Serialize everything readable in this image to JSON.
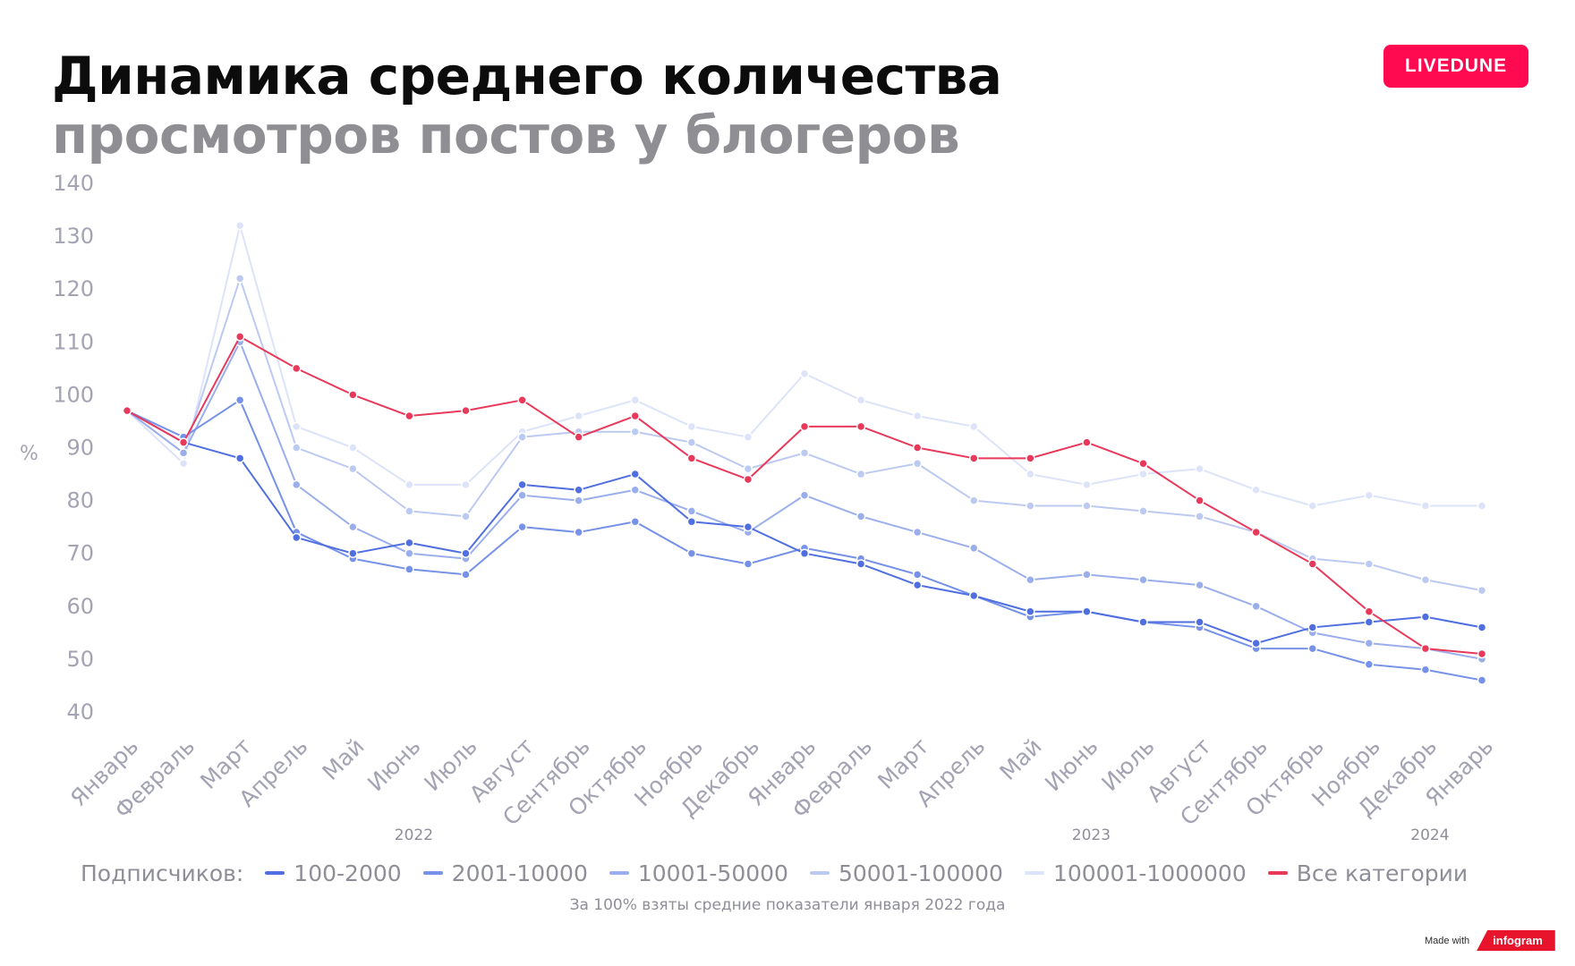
{
  "header": {
    "title_line1": "Динамика среднего количества",
    "title_line2": "просмотров постов у блогеров",
    "logo_text": "LIVEDUNE"
  },
  "chart_data": {
    "type": "line",
    "title": "Динамика среднего количества просмотров постов у блогеров",
    "ylabel": "%",
    "xlabel": "",
    "ylim": [
      40,
      140
    ],
    "yticks": [
      40,
      50,
      60,
      70,
      80,
      90,
      100,
      110,
      120,
      130,
      140
    ],
    "grid": false,
    "legend_position": "bottom",
    "legend_title": "Подписчиков:",
    "categories": [
      "Январь",
      "Февраль",
      "Март",
      "Апрель",
      "Май",
      "Июнь",
      "Июль",
      "Август",
      "Сентябрь",
      "Октябрь",
      "Ноябрь",
      "Декабрь",
      "Январь",
      "Февраль",
      "Март",
      "Апрель",
      "Май",
      "Июнь",
      "Июль",
      "Август",
      "Сентябрь",
      "Октябрь",
      "Ноябрь",
      "Декабрь",
      "Январь"
    ],
    "year_labels": [
      {
        "label": "2022",
        "category_index": 5
      },
      {
        "label": "2023",
        "category_index": 17
      },
      {
        "label": "2024",
        "category_index": 23
      }
    ],
    "series": [
      {
        "name": "100001-1000000",
        "color": "#dde3f8",
        "values": [
          97,
          87,
          132,
          94,
          90,
          83,
          83,
          93,
          96,
          99,
          94,
          92,
          104,
          99,
          96,
          94,
          85,
          83,
          85,
          86,
          82,
          79,
          81,
          79,
          79
        ]
      },
      {
        "name": "50001-100000",
        "color": "#bccaf1",
        "values": [
          97,
          89,
          122,
          90,
          86,
          78,
          77,
          92,
          93,
          93,
          91,
          86,
          89,
          85,
          87,
          80,
          79,
          79,
          78,
          77,
          74,
          69,
          68,
          65,
          63
        ]
      },
      {
        "name": "10001-50000",
        "color": "#9aaeec",
        "values": [
          97,
          89,
          110,
          83,
          75,
          70,
          69,
          81,
          80,
          82,
          78,
          74,
          81,
          77,
          74,
          71,
          65,
          66,
          65,
          64,
          60,
          55,
          53,
          52,
          50
        ]
      },
      {
        "name": "2001-10000",
        "color": "#7591e8",
        "values": [
          97,
          92,
          99,
          74,
          69,
          67,
          66,
          75,
          74,
          76,
          70,
          68,
          71,
          69,
          66,
          62,
          58,
          59,
          57,
          56,
          52,
          52,
          49,
          48,
          46
        ]
      },
      {
        "name": "100-2000",
        "color": "#4f6fe0",
        "values": [
          97,
          91,
          88,
          73,
          70,
          72,
          70,
          83,
          82,
          85,
          76,
          75,
          70,
          68,
          64,
          62,
          59,
          59,
          57,
          57,
          53,
          56,
          57,
          58,
          56
        ]
      },
      {
        "name": "Все категории",
        "color": "#e8395a",
        "values": [
          97,
          91,
          111,
          105,
          100,
          96,
          97,
          99,
          92,
          96,
          88,
          84,
          94,
          94,
          90,
          88,
          88,
          91,
          87,
          80,
          74,
          68,
          59,
          52,
          51
        ]
      }
    ],
    "legend_order": [
      "100-2000",
      "2001-10000",
      "10001-50000",
      "50001-100000",
      "100001-1000000",
      "Все категории"
    ],
    "footnote": "За 100% взяты средние показатели января 2022 года"
  },
  "badge": {
    "made_with": "Made with",
    "brand": "infogram"
  }
}
